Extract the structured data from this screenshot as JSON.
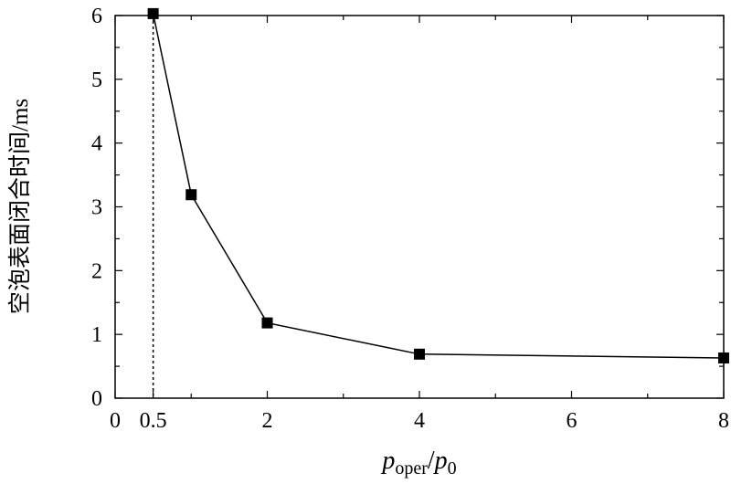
{
  "chart_data": {
    "type": "line",
    "xlabel_parts": {
      "p1": "p",
      "sub1": "oper",
      "slash": "/",
      "p2": "p",
      "sub2": "0"
    },
    "ylabel": "空泡表面闭合时间/ms",
    "xlim": [
      0,
      8
    ],
    "ylim": [
      0,
      6
    ],
    "x_ticks": [
      {
        "value": 0,
        "label": "0"
      },
      {
        "value": 0.5,
        "label": "0.5"
      },
      {
        "value": 2,
        "label": "2"
      },
      {
        "value": 4,
        "label": "4"
      },
      {
        "value": 6,
        "label": "6"
      },
      {
        "value": 8,
        "label": "8"
      }
    ],
    "x_minor_ticks": [
      1,
      3,
      5,
      7
    ],
    "y_ticks": [
      {
        "value": 0,
        "label": "0"
      },
      {
        "value": 1,
        "label": "1"
      },
      {
        "value": 2,
        "label": "2"
      },
      {
        "value": 3,
        "label": "3"
      },
      {
        "value": 4,
        "label": "4"
      },
      {
        "value": 5,
        "label": "5"
      },
      {
        "value": 6,
        "label": "6"
      }
    ],
    "y_minor_ticks": [
      0.5,
      1.5,
      2.5,
      3.5,
      4.5,
      5.5
    ],
    "series": [
      {
        "points": [
          {
            "x": 0.5,
            "y": 6.03
          },
          {
            "x": 1,
            "y": 3.19
          },
          {
            "x": 2,
            "y": 1.18
          },
          {
            "x": 4,
            "y": 0.69
          },
          {
            "x": 8,
            "y": 0.63
          }
        ],
        "marker": "square",
        "color": "#000000"
      }
    ],
    "reference_lines": [
      {
        "orientation": "vertical",
        "x": 0.5,
        "style": "dotted"
      }
    ],
    "grid": false,
    "legend": "none"
  }
}
